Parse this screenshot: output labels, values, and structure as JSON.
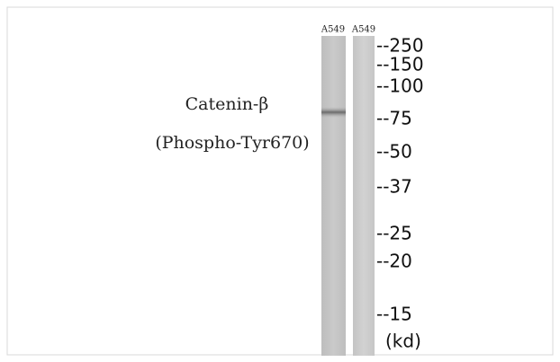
{
  "lanes": [
    {
      "label": "A549"
    },
    {
      "label": "A549"
    }
  ],
  "protein": {
    "name": "Catenin-β",
    "modification": "(Phospho-Tyr670)"
  },
  "markers": [
    "--250",
    "--150",
    "--100",
    "--75",
    "--50",
    "--37",
    "--25",
    "--20",
    "--15"
  ],
  "unit": "(kd)"
}
